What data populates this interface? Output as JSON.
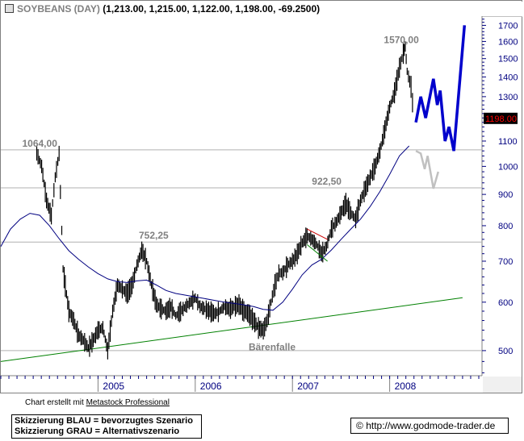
{
  "header": {
    "symbol": "SOYBEANS (DAY)",
    "values": "(1,213.00, 1,215.00, 1,122.00, 1,198.00, -69.2500)"
  },
  "chart_data": {
    "type": "candlestick",
    "title": "SOYBEANS (DAY)",
    "yscale": "log",
    "ylim": [
      455,
      1760
    ],
    "yticks": [
      500,
      600,
      700,
      800,
      900,
      1000,
      1100,
      1200,
      1300,
      1400,
      1500,
      1600,
      1700
    ],
    "x_labels": [
      "2005",
      "2006",
      "2007",
      "2008"
    ],
    "last_price_label": "1198.00",
    "level_labels": [
      {
        "text": "1064,00",
        "value": 1064
      },
      {
        "text": "752,25",
        "value": 752.25
      },
      {
        "text": "922,50",
        "value": 922.5
      },
      {
        "text": "1570,00",
        "value": 1570
      },
      {
        "text": "Bärenfalle",
        "value": 535
      }
    ],
    "horizontal_levels": [
      1064,
      922.5,
      752.25,
      500
    ],
    "price_series": [
      [
        2004.37,
        1050
      ],
      [
        2004.42,
        1000
      ],
      [
        2004.47,
        880
      ],
      [
        2004.52,
        830
      ],
      [
        2004.56,
        960
      ],
      [
        2004.6,
        1050
      ],
      [
        2004.64,
        680
      ],
      [
        2004.7,
        580
      ],
      [
        2004.75,
        560
      ],
      [
        2004.8,
        530
      ],
      [
        2004.85,
        520
      ],
      [
        2004.9,
        505
      ],
      [
        2004.95,
        520
      ],
      [
        2005.0,
        540
      ],
      [
        2005.05,
        545
      ],
      [
        2005.1,
        500
      ],
      [
        2005.15,
        580
      ],
      [
        2005.2,
        640
      ],
      [
        2005.25,
        630
      ],
      [
        2005.3,
        620
      ],
      [
        2005.35,
        640
      ],
      [
        2005.4,
        690
      ],
      [
        2005.45,
        730
      ],
      [
        2005.5,
        700
      ],
      [
        2005.55,
        640
      ],
      [
        2005.6,
        595
      ],
      [
        2005.65,
        585
      ],
      [
        2005.7,
        580
      ],
      [
        2005.75,
        590
      ],
      [
        2005.8,
        570
      ],
      [
        2005.85,
        580
      ],
      [
        2005.9,
        590
      ],
      [
        2005.95,
        600
      ],
      [
        2006.0,
        610
      ],
      [
        2006.05,
        590
      ],
      [
        2006.1,
        585
      ],
      [
        2006.15,
        580
      ],
      [
        2006.2,
        575
      ],
      [
        2006.25,
        580
      ],
      [
        2006.3,
        590
      ],
      [
        2006.35,
        585
      ],
      [
        2006.4,
        590
      ],
      [
        2006.45,
        595
      ],
      [
        2006.5,
        580
      ],
      [
        2006.55,
        575
      ],
      [
        2006.6,
        560
      ],
      [
        2006.65,
        545
      ],
      [
        2006.7,
        540
      ],
      [
        2006.74,
        560
      ],
      [
        2006.78,
        600
      ],
      [
        2006.82,
        640
      ],
      [
        2006.86,
        670
      ],
      [
        2006.9,
        670
      ],
      [
        2006.95,
        690
      ],
      [
        2007.0,
        700
      ],
      [
        2007.05,
        720
      ],
      [
        2007.1,
        750
      ],
      [
        2007.15,
        770
      ],
      [
        2007.2,
        760
      ],
      [
        2007.25,
        745
      ],
      [
        2007.3,
        720
      ],
      [
        2007.35,
        740
      ],
      [
        2007.4,
        790
      ],
      [
        2007.45,
        810
      ],
      [
        2007.5,
        840
      ],
      [
        2007.55,
        870
      ],
      [
        2007.6,
        840
      ],
      [
        2007.65,
        820
      ],
      [
        2007.7,
        880
      ],
      [
        2007.75,
        920
      ],
      [
        2007.8,
        960
      ],
      [
        2007.85,
        1000
      ],
      [
        2007.9,
        1060
      ],
      [
        2007.95,
        1150
      ],
      [
        2008.0,
        1250
      ],
      [
        2008.05,
        1320
      ],
      [
        2008.1,
        1450
      ],
      [
        2008.14,
        1530
      ],
      [
        2008.16,
        1570
      ],
      [
        2008.18,
        1430
      ],
      [
        2008.22,
        1350
      ],
      [
        2008.25,
        1198
      ]
    ],
    "moving_average": [
      [
        2004.0,
        740
      ],
      [
        2004.1,
        790
      ],
      [
        2004.2,
        820
      ],
      [
        2004.3,
        838
      ],
      [
        2004.4,
        832
      ],
      [
        2004.5,
        800
      ],
      [
        2004.6,
        762
      ],
      [
        2004.7,
        728
      ],
      [
        2004.8,
        705
      ],
      [
        2004.9,
        685
      ],
      [
        2005.0,
        668
      ],
      [
        2005.1,
        655
      ],
      [
        2005.2,
        648
      ],
      [
        2005.3,
        646
      ],
      [
        2005.4,
        650
      ],
      [
        2005.5,
        652
      ],
      [
        2005.6,
        640
      ],
      [
        2005.7,
        627
      ],
      [
        2005.8,
        620
      ],
      [
        2005.9,
        616
      ],
      [
        2006.0,
        612
      ],
      [
        2006.1,
        608
      ],
      [
        2006.2,
        604
      ],
      [
        2006.3,
        600
      ],
      [
        2006.4,
        597
      ],
      [
        2006.5,
        594
      ],
      [
        2006.6,
        590
      ],
      [
        2006.7,
        584
      ],
      [
        2006.8,
        582
      ],
      [
        2006.9,
        600
      ],
      [
        2007.0,
        630
      ],
      [
        2007.1,
        665
      ],
      [
        2007.2,
        690
      ],
      [
        2007.3,
        705
      ],
      [
        2007.4,
        730
      ],
      [
        2007.5,
        760
      ],
      [
        2007.6,
        790
      ],
      [
        2007.7,
        820
      ],
      [
        2007.8,
        860
      ],
      [
        2007.9,
        910
      ],
      [
        2008.0,
        970
      ],
      [
        2008.1,
        1040
      ],
      [
        2008.2,
        1080
      ]
    ],
    "trendline": [
      [
        2004.0,
        480
      ],
      [
        2008.75,
        610
      ]
    ],
    "scenarios": [
      {
        "name": "Skizzierung BLAU = bevorzugtes Szenario",
        "color": "#0000cc",
        "points": [
          [
            2008.27,
            1180
          ],
          [
            2008.32,
            1300
          ],
          [
            2008.37,
            1200
          ],
          [
            2008.45,
            1390
          ],
          [
            2008.49,
            1260
          ],
          [
            2008.52,
            1330
          ],
          [
            2008.57,
            1100
          ],
          [
            2008.61,
            1160
          ],
          [
            2008.66,
            1060
          ],
          [
            2008.77,
            1700
          ]
        ]
      },
      {
        "name": "Skizzierung GRAU = Alternativszenario",
        "color": "#c0c0c0",
        "points": [
          [
            2008.27,
            1060
          ],
          [
            2008.32,
            1050
          ],
          [
            2008.36,
            990
          ],
          [
            2008.39,
            1040
          ],
          [
            2008.45,
            920
          ],
          [
            2008.5,
            980
          ]
        ]
      }
    ],
    "pattern_lines": [
      {
        "color": "#cc0000",
        "points": [
          [
            2007.15,
            790
          ],
          [
            2007.36,
            760
          ]
        ]
      },
      {
        "color": "#008000",
        "points": [
          [
            2007.15,
            745
          ],
          [
            2007.36,
            700
          ]
        ]
      }
    ],
    "colors": {
      "price": "#000000",
      "moving_average": "#000080",
      "trendline": "#008000",
      "levels": "#b0b0b0",
      "last_price_box": "#000000",
      "last_price_text": "#ff0000",
      "axis_text": "#000080"
    }
  },
  "footer": {
    "credit_prefix": "Chart erstellt mit",
    "credit_link": "Metastock Professional",
    "legend_blue": "Skizzierung BLAU = bevorzugtes Szenario",
    "legend_grey": "Skizzierung GRAU = Alternativszenario",
    "copyright_symbol": "©",
    "copyright_url": "http://www.godmode-trader.de"
  }
}
